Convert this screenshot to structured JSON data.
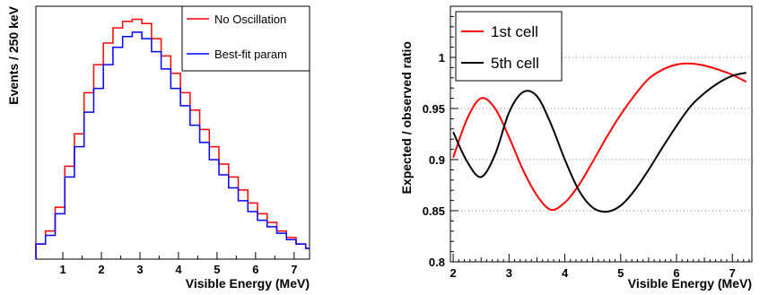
{
  "chart_data": [
    {
      "type": "line",
      "style": "histogram",
      "title": "",
      "xlabel": "Visible Energy (MeV)",
      "ylabel": "Events / 250 keV",
      "xlim": [
        0.3,
        7.4
      ],
      "ylim": [
        0,
        1.17
      ],
      "x_ticks": [
        "1",
        "2",
        "3",
        "4",
        "5",
        "6",
        "7"
      ],
      "y_ticks_shown": false,
      "grid": false,
      "legend": "top-right",
      "bin_edges": [
        0.3,
        0.55,
        0.8,
        1.05,
        1.3,
        1.55,
        1.8,
        2.05,
        2.3,
        2.55,
        2.8,
        3.05,
        3.3,
        3.55,
        3.8,
        4.05,
        4.3,
        4.55,
        4.8,
        5.05,
        5.3,
        5.55,
        5.8,
        6.05,
        6.3,
        6.55,
        6.8,
        7.05,
        7.3,
        7.4
      ],
      "series": [
        {
          "name": "No Oscillation",
          "color": "#ff0000",
          "values": [
            0.07,
            0.13,
            0.24,
            0.43,
            0.58,
            0.77,
            0.9,
            1.0,
            1.07,
            1.1,
            1.11,
            1.09,
            1.02,
            0.94,
            0.86,
            0.77,
            0.69,
            0.6,
            0.52,
            0.44,
            0.38,
            0.32,
            0.26,
            0.21,
            0.17,
            0.13,
            0.1,
            0.07,
            0.05
          ]
        },
        {
          "name": "Best-fit param",
          "color": "#0000ff",
          "values": [
            0.07,
            0.11,
            0.21,
            0.38,
            0.52,
            0.68,
            0.79,
            0.9,
            0.98,
            1.03,
            1.05,
            1.02,
            0.96,
            0.88,
            0.79,
            0.71,
            0.62,
            0.54,
            0.46,
            0.39,
            0.33,
            0.27,
            0.22,
            0.18,
            0.15,
            0.12,
            0.09,
            0.07,
            0.05
          ]
        }
      ]
    },
    {
      "type": "line",
      "title": "",
      "xlabel": "Visible Energy (MeV)",
      "ylabel": "Expected / observed ratio",
      "xlim": [
        1.95,
        7.35
      ],
      "ylim": [
        0.8,
        1.05
      ],
      "x_ticks": [
        "2",
        "3",
        "4",
        "5",
        "6",
        "7"
      ],
      "y_ticks": [
        "0.8",
        "0.85",
        "0.9",
        "0.95",
        "1"
      ],
      "grid": "horizontal dotted",
      "legend": "top-left",
      "series": [
        {
          "name": "1st cell",
          "color": "#ff0000",
          "x": [
            2.0,
            2.25,
            2.5,
            2.75,
            3.0,
            3.25,
            3.5,
            3.75,
            4.0,
            4.25,
            4.5,
            4.75,
            5.0,
            5.25,
            5.5,
            5.75,
            6.0,
            6.25,
            6.5,
            6.75,
            7.0,
            7.25
          ],
          "y": [
            0.902,
            0.94,
            0.96,
            0.95,
            0.922,
            0.89,
            0.865,
            0.851,
            0.858,
            0.875,
            0.898,
            0.922,
            0.944,
            0.963,
            0.979,
            0.988,
            0.993,
            0.994,
            0.992,
            0.988,
            0.983,
            0.976
          ]
        },
        {
          "name": "5th cell",
          "color": "#000000",
          "x": [
            2.0,
            2.25,
            2.5,
            2.75,
            3.0,
            3.25,
            3.5,
            3.75,
            4.0,
            4.25,
            4.5,
            4.75,
            5.0,
            5.25,
            5.5,
            5.75,
            6.0,
            6.25,
            6.5,
            6.75,
            7.0,
            7.25
          ],
          "y": [
            0.927,
            0.898,
            0.883,
            0.905,
            0.946,
            0.966,
            0.962,
            0.935,
            0.9,
            0.87,
            0.853,
            0.849,
            0.855,
            0.87,
            0.89,
            0.912,
            0.933,
            0.952,
            0.965,
            0.975,
            0.982,
            0.985
          ]
        }
      ]
    }
  ]
}
